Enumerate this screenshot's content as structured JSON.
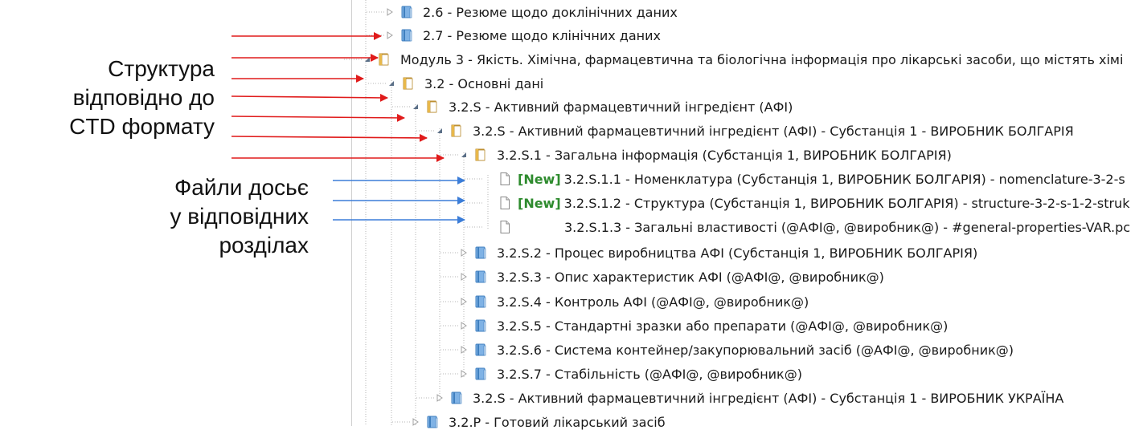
{
  "annotations": {
    "structure_lines": [
      "Структура",
      "відповідно до",
      "CTD формату"
    ],
    "files_lines": [
      "Файли досьє",
      "у відповідних",
      "розділах"
    ]
  },
  "colors": {
    "red_arrow": "#e01b1b",
    "blue_arrow": "#3b7dd8",
    "new_tag": "#2e8b2e",
    "folder": "#e8b84a",
    "book": "#5b9bd5"
  },
  "tree": [
    {
      "label": "2.6 - Резюме щодо доклінічних даних",
      "icon": "book-icon",
      "toggle": "collapsed",
      "new": ""
    },
    {
      "label": "2.7 - Резюме щодо клінічних даних",
      "icon": "book-icon",
      "toggle": "collapsed",
      "new": ""
    },
    {
      "label": "Модуль 3 - Якість. Хімічна, фармацевтична та біологічна інформація про лікарські засоби, що містять хімі",
      "icon": "folder-open-icon",
      "toggle": "expanded",
      "new": ""
    },
    {
      "label": "3.2 - Основні дані",
      "icon": "folder-open-icon",
      "toggle": "expanded",
      "new": ""
    },
    {
      "label": "3.2.S - Активний фармацевтичний інгредієнт (АФІ)",
      "icon": "folder-open-icon",
      "toggle": "expanded",
      "new": ""
    },
    {
      "label": "3.2.S - Активний фармацевтичний інгредієнт (АФІ) - Субстанція 1 - ВИРОБНИК БОЛГАРІЯ",
      "icon": "folder-open-icon",
      "toggle": "expanded",
      "new": ""
    },
    {
      "label": "3.2.S.1 - Загальна інформація (Субстанція 1, ВИРОБНИК БОЛГАРІЯ)",
      "icon": "folder-open-icon",
      "toggle": "expanded",
      "new": ""
    },
    {
      "label": "3.2.S.1.1 - Номенклатура (Субстанція 1, ВИРОБНИК БОЛГАРІЯ) - nomenclature-3-2-s",
      "icon": "document-icon",
      "toggle": "none",
      "new": "[New]"
    },
    {
      "label": "3.2.S.1.2 - Структура (Субстанція 1, ВИРОБНИК БОЛГАРІЯ) - structure-3-2-s-1-2-struk",
      "icon": "document-icon",
      "toggle": "none",
      "new": "[New]"
    },
    {
      "label": "3.2.S.1.3 - Загальні властивості (@АФІ@, @виробник@) - #general-properties-VAR.pc",
      "icon": "document-icon",
      "toggle": "none",
      "new": ""
    },
    {
      "label": "3.2.S.2 - Процес виробництва АФІ (Субстанція 1, ВИРОБНИК БОЛГАРІЯ)",
      "icon": "book-icon",
      "toggle": "collapsed",
      "new": ""
    },
    {
      "label": "3.2.S.3 - Опис характеристик АФІ (@АФІ@, @виробник@)",
      "icon": "book-icon",
      "toggle": "collapsed",
      "new": ""
    },
    {
      "label": "3.2.S.4 - Контроль АФІ (@АФІ@, @виробник@)",
      "icon": "book-icon",
      "toggle": "collapsed",
      "new": ""
    },
    {
      "label": "3.2.S.5 - Стандартні зразки або препарати (@АФІ@, @виробник@)",
      "icon": "book-icon",
      "toggle": "collapsed",
      "new": ""
    },
    {
      "label": "3.2.S.6 - Система контейнер/закупорювальний засіб (@АФІ@, @виробник@)",
      "icon": "book-icon",
      "toggle": "collapsed",
      "new": ""
    },
    {
      "label": "3.2.S.7 - Стабільність (@АФІ@, @виробник@)",
      "icon": "book-icon",
      "toggle": "collapsed",
      "new": ""
    },
    {
      "label": "3.2.S - Активний фармацевтичний інгредієнт (АФІ) - Субстанція 1 - ВИРОБНИК УКРАЇНА",
      "icon": "book-icon",
      "toggle": "collapsed",
      "new": ""
    },
    {
      "label": "3.2.P - Готовий лікарський засіб",
      "icon": "book-icon",
      "toggle": "collapsed",
      "new": ""
    }
  ]
}
